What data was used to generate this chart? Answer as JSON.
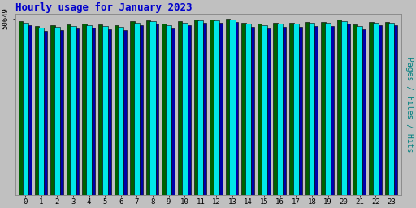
{
  "title": "Hourly usage for January 2023",
  "title_color": "#0000cc",
  "title_fontsize": 9,
  "ylabel_right": "Pages / Files / Hits",
  "ylabel_right_color": "#008080",
  "ylabel_fontsize": 7,
  "ytick_label": "50649",
  "background_color": "#c0c0c0",
  "plot_bg_color": "#c0c0c0",
  "bar_colors": [
    "#006000",
    "#00e8e8",
    "#0000aa"
  ],
  "bar_edgecolor": "#000000",
  "hours": [
    0,
    1,
    2,
    3,
    4,
    5,
    6,
    7,
    8,
    9,
    10,
    11,
    12,
    13,
    14,
    15,
    16,
    17,
    18,
    19,
    20,
    21,
    22,
    23
  ],
  "pages": [
    49800,
    48500,
    48700,
    49000,
    49200,
    48900,
    48700,
    49800,
    50100,
    49100,
    49800,
    50400,
    50400,
    50649,
    49400,
    49100,
    49400,
    49400,
    49700,
    49700,
    50300,
    48900,
    49700,
    49700
  ],
  "files": [
    49500,
    48000,
    48200,
    48500,
    48800,
    48400,
    48200,
    49500,
    49900,
    48700,
    49500,
    50100,
    50100,
    50400,
    49100,
    48700,
    49100,
    49100,
    49400,
    49400,
    50000,
    48400,
    49400,
    49400
  ],
  "hits": [
    48800,
    47200,
    47400,
    47700,
    48000,
    47600,
    47400,
    48800,
    49200,
    47900,
    48800,
    49400,
    49500,
    49700,
    48300,
    47900,
    48300,
    48300,
    48600,
    48600,
    49300,
    47600,
    48700,
    48700
  ],
  "ymax": 52000,
  "ymin": 44000,
  "xlim": [
    -0.6,
    23.6
  ],
  "bar_width": 0.28
}
